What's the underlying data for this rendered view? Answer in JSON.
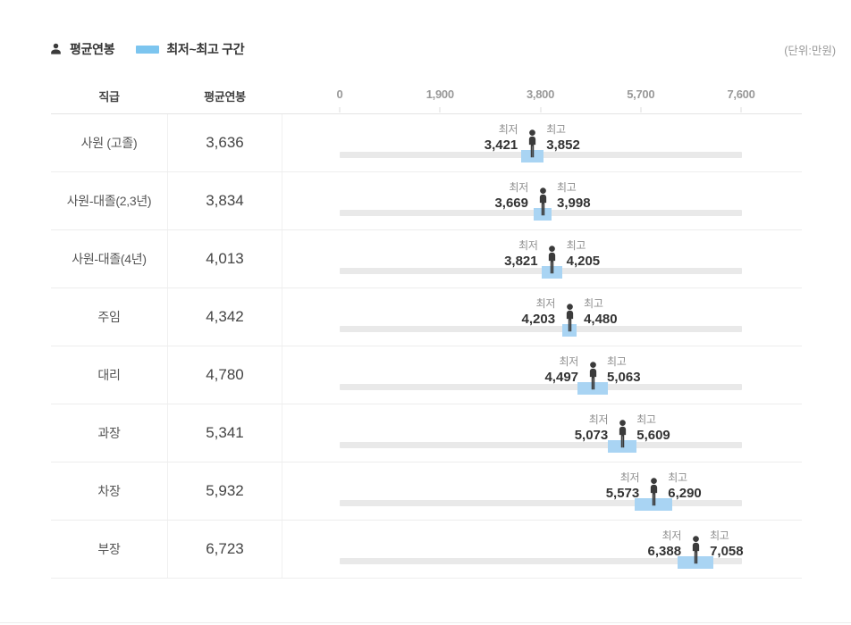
{
  "unit_note": "(단위:만원)",
  "legend": {
    "avg_label": "평균연봉",
    "range_label": "최저~최고 구간"
  },
  "table": {
    "col_position": "직급",
    "col_avg": "평균연봉",
    "min_caption": "최저",
    "max_caption": "최고",
    "axis": {
      "tick_labels": [
        "0",
        "1,900",
        "3,800",
        "5,700",
        "7,600"
      ]
    }
  },
  "rows": [
    {
      "label": "사원 (고졸)",
      "avg": "3,636",
      "min": "3,421",
      "max": "3,852",
      "avg_value": 3636,
      "min_value": 3421,
      "max_value": 3852
    },
    {
      "label": "사원-대졸(2,3년)",
      "avg": "3,834",
      "min": "3,669",
      "max": "3,998",
      "avg_value": 3834,
      "min_value": 3669,
      "max_value": 3998
    },
    {
      "label": "사원-대졸(4년)",
      "avg": "4,013",
      "min": "3,821",
      "max": "4,205",
      "avg_value": 4013,
      "min_value": 3821,
      "max_value": 4205
    },
    {
      "label": "주임",
      "avg": "4,342",
      "min": "4,203",
      "max": "4,480",
      "avg_value": 4342,
      "min_value": 4203,
      "max_value": 4480
    },
    {
      "label": "대리",
      "avg": "4,780",
      "min": "4,497",
      "max": "5,063",
      "avg_value": 4780,
      "min_value": 4497,
      "max_value": 5063
    },
    {
      "label": "과장",
      "avg": "5,341",
      "min": "5,073",
      "max": "5,609",
      "avg_value": 5341,
      "min_value": 5073,
      "max_value": 5609
    },
    {
      "label": "차장",
      "avg": "5,932",
      "min": "5,573",
      "max": "6,290",
      "avg_value": 5932,
      "min_value": 5573,
      "max_value": 6290
    },
    {
      "label": "부장",
      "avg": "6,723",
      "min": "6,388",
      "max": "7,058",
      "avg_value": 6723,
      "min_value": 6388,
      "max_value": 7058
    }
  ],
  "chart_data": {
    "type": "bar",
    "subtype": "horizontal-range-bar",
    "categories": [
      "사원 (고졸)",
      "사원-대졸(2,3년)",
      "사원-대졸(4년)",
      "주임",
      "대리",
      "과장",
      "차장",
      "부장"
    ],
    "series": [
      {
        "name": "평균연봉",
        "values": [
          3636,
          3834,
          4013,
          4342,
          4780,
          5341,
          5932,
          6723
        ]
      },
      {
        "name": "최저",
        "values": [
          3421,
          3669,
          3821,
          4203,
          4497,
          5073,
          5573,
          6388
        ]
      },
      {
        "name": "최고",
        "values": [
          3852,
          3998,
          4205,
          4480,
          5063,
          5609,
          6290,
          7058
        ]
      }
    ],
    "xlabel": "",
    "ylabel": "직급",
    "xlim": [
      0,
      7600
    ],
    "x_ticks": [
      0,
      1900,
      3800,
      5700,
      7600
    ],
    "unit": "만원",
    "legend_position": "top-left",
    "grid": false
  },
  "colors": {
    "legend_swatch_blue": "#7cc5ef",
    "range_blue": "#a9d4f3",
    "track_gray": "#e9e9e9",
    "person_dark": "#3b3b3b"
  }
}
